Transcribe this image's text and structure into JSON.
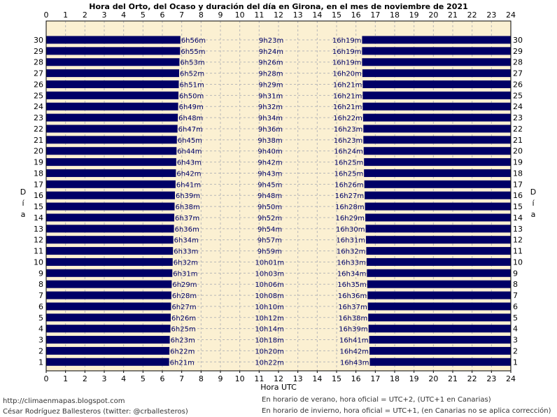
{
  "chart_data": {
    "type": "bar",
    "orientation": "horizontal",
    "title": "Hora del Orto, del Ocaso y duración del día en Girona, en el mes de noviembre de 2021",
    "xlabel": "Hora UTC",
    "ylabel": "Día",
    "xlim": [
      0,
      24
    ],
    "ylim": [
      1,
      30
    ],
    "xticks": [
      "0",
      "1",
      "2",
      "3",
      "4",
      "5",
      "6",
      "7",
      "8",
      "9",
      "10",
      "11",
      "12",
      "13",
      "14",
      "15",
      "16",
      "17",
      "18",
      "19",
      "20",
      "21",
      "22",
      "23",
      "24"
    ],
    "grid": true,
    "colors": {
      "bar": "#000066",
      "plot_bg": "#fbf0d2",
      "grid": "#b8b8b8",
      "label": "#000066"
    },
    "days": [
      1,
      2,
      3,
      4,
      5,
      6,
      7,
      8,
      9,
      10,
      11,
      12,
      13,
      14,
      15,
      16,
      17,
      18,
      19,
      20,
      21,
      22,
      23,
      24,
      25,
      26,
      27,
      28,
      29,
      30
    ],
    "sunrise": [
      "6h21m",
      "6h22m",
      "6h23m",
      "6h25m",
      "6h26m",
      "6h27m",
      "6h28m",
      "6h29m",
      "6h31m",
      "6h32m",
      "6h33m",
      "6h34m",
      "6h36m",
      "6h37m",
      "6h38m",
      "6h39m",
      "6h41m",
      "6h42m",
      "6h43m",
      "6h44m",
      "6h45m",
      "6h47m",
      "6h48m",
      "6h49m",
      "6h50m",
      "6h51m",
      "6h52m",
      "6h53m",
      "6h55m",
      "6h56m"
    ],
    "sunset": [
      "16h43m",
      "16h42m",
      "16h41m",
      "16h39m",
      "16h38m",
      "16h37m",
      "16h36m",
      "16h35m",
      "16h34m",
      "16h33m",
      "16h32m",
      "16h31m",
      "16h30m",
      "16h29m",
      "16h28m",
      "16h27m",
      "16h26m",
      "16h25m",
      "16h25m",
      "16h24m",
      "16h23m",
      "16h23m",
      "16h22m",
      "16h21m",
      "16h21m",
      "16h21m",
      "16h20m",
      "16h19m",
      "16h19m",
      "16h19m"
    ],
    "daylength": [
      "10h22m",
      "10h20m",
      "10h18m",
      "10h14m",
      "10h12m",
      "10h10m",
      "10h08m",
      "10h06m",
      "10h03m",
      "10h01m",
      "9h59m",
      "9h57m",
      "9h54m",
      "9h52m",
      "9h50m",
      "9h48m",
      "9h45m",
      "9h43m",
      "9h42m",
      "9h40m",
      "9h38m",
      "9h36m",
      "9h34m",
      "9h32m",
      "9h31m",
      "9h29m",
      "9h28m",
      "9h26m",
      "9h24m",
      "9h23m"
    ]
  },
  "footer": {
    "url": "http://climaenmapas.blogspot.com",
    "author": "César Rodríguez Ballesteros (twitter: @crballesteros)",
    "summer_note": "En horario de verano, hora oficial = UTC+2, (UTC+1 en Canarias)",
    "winter_note": "En horario de invierno, hora oficial = UTC+1, (en Canarias no se aplica corrección)"
  }
}
